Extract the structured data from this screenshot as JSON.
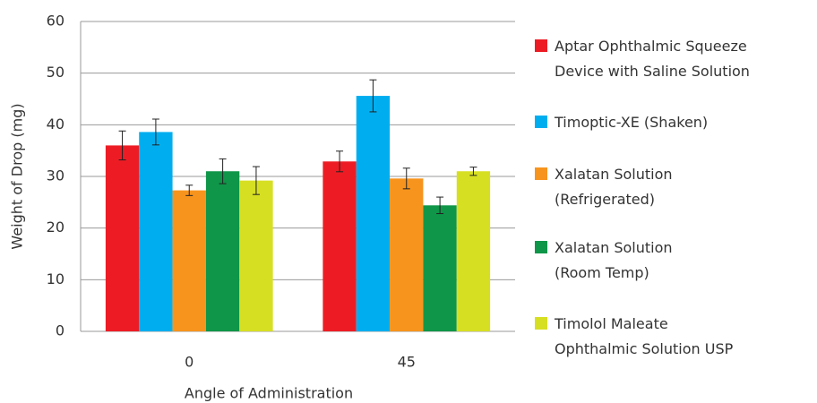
{
  "chart_data": {
    "type": "bar",
    "xlabel": "Angle of Administration",
    "ylabel": "Weight of Drop (mg)",
    "categories": [
      "0",
      "45"
    ],
    "series": [
      {
        "name": "Aptar Ophthalmic Squeeze\nDevice with Saline Solution",
        "color": "#ed1c24",
        "values": [
          36,
          32.9
        ],
        "errors": [
          2.8,
          2
        ]
      },
      {
        "name": "Timoptic-XE (Shaken)",
        "color": "#00aeef",
        "values": [
          38.6,
          45.6
        ],
        "errors": [
          2.5,
          3.1
        ]
      },
      {
        "name": "Xalatan Solution\n(Refrigerated)",
        "color": "#f7941d",
        "values": [
          27.3,
          29.6
        ],
        "errors": [
          1,
          2
        ]
      },
      {
        "name": "Xalatan Solution\n(Room Temp)",
        "color": "#0f9648",
        "values": [
          31,
          24.4
        ],
        "errors": [
          2.4,
          1.6
        ]
      },
      {
        "name": "Timolol Maleate\nOphthalmic Solution USP",
        "color": "#d7df23",
        "values": [
          29.2,
          31
        ],
        "errors": [
          2.7,
          0.8
        ]
      }
    ],
    "ylim": [
      0,
      60
    ],
    "yticks": [
      0,
      10,
      20,
      30,
      40,
      50,
      60
    ],
    "grid": true,
    "legend": "right"
  }
}
